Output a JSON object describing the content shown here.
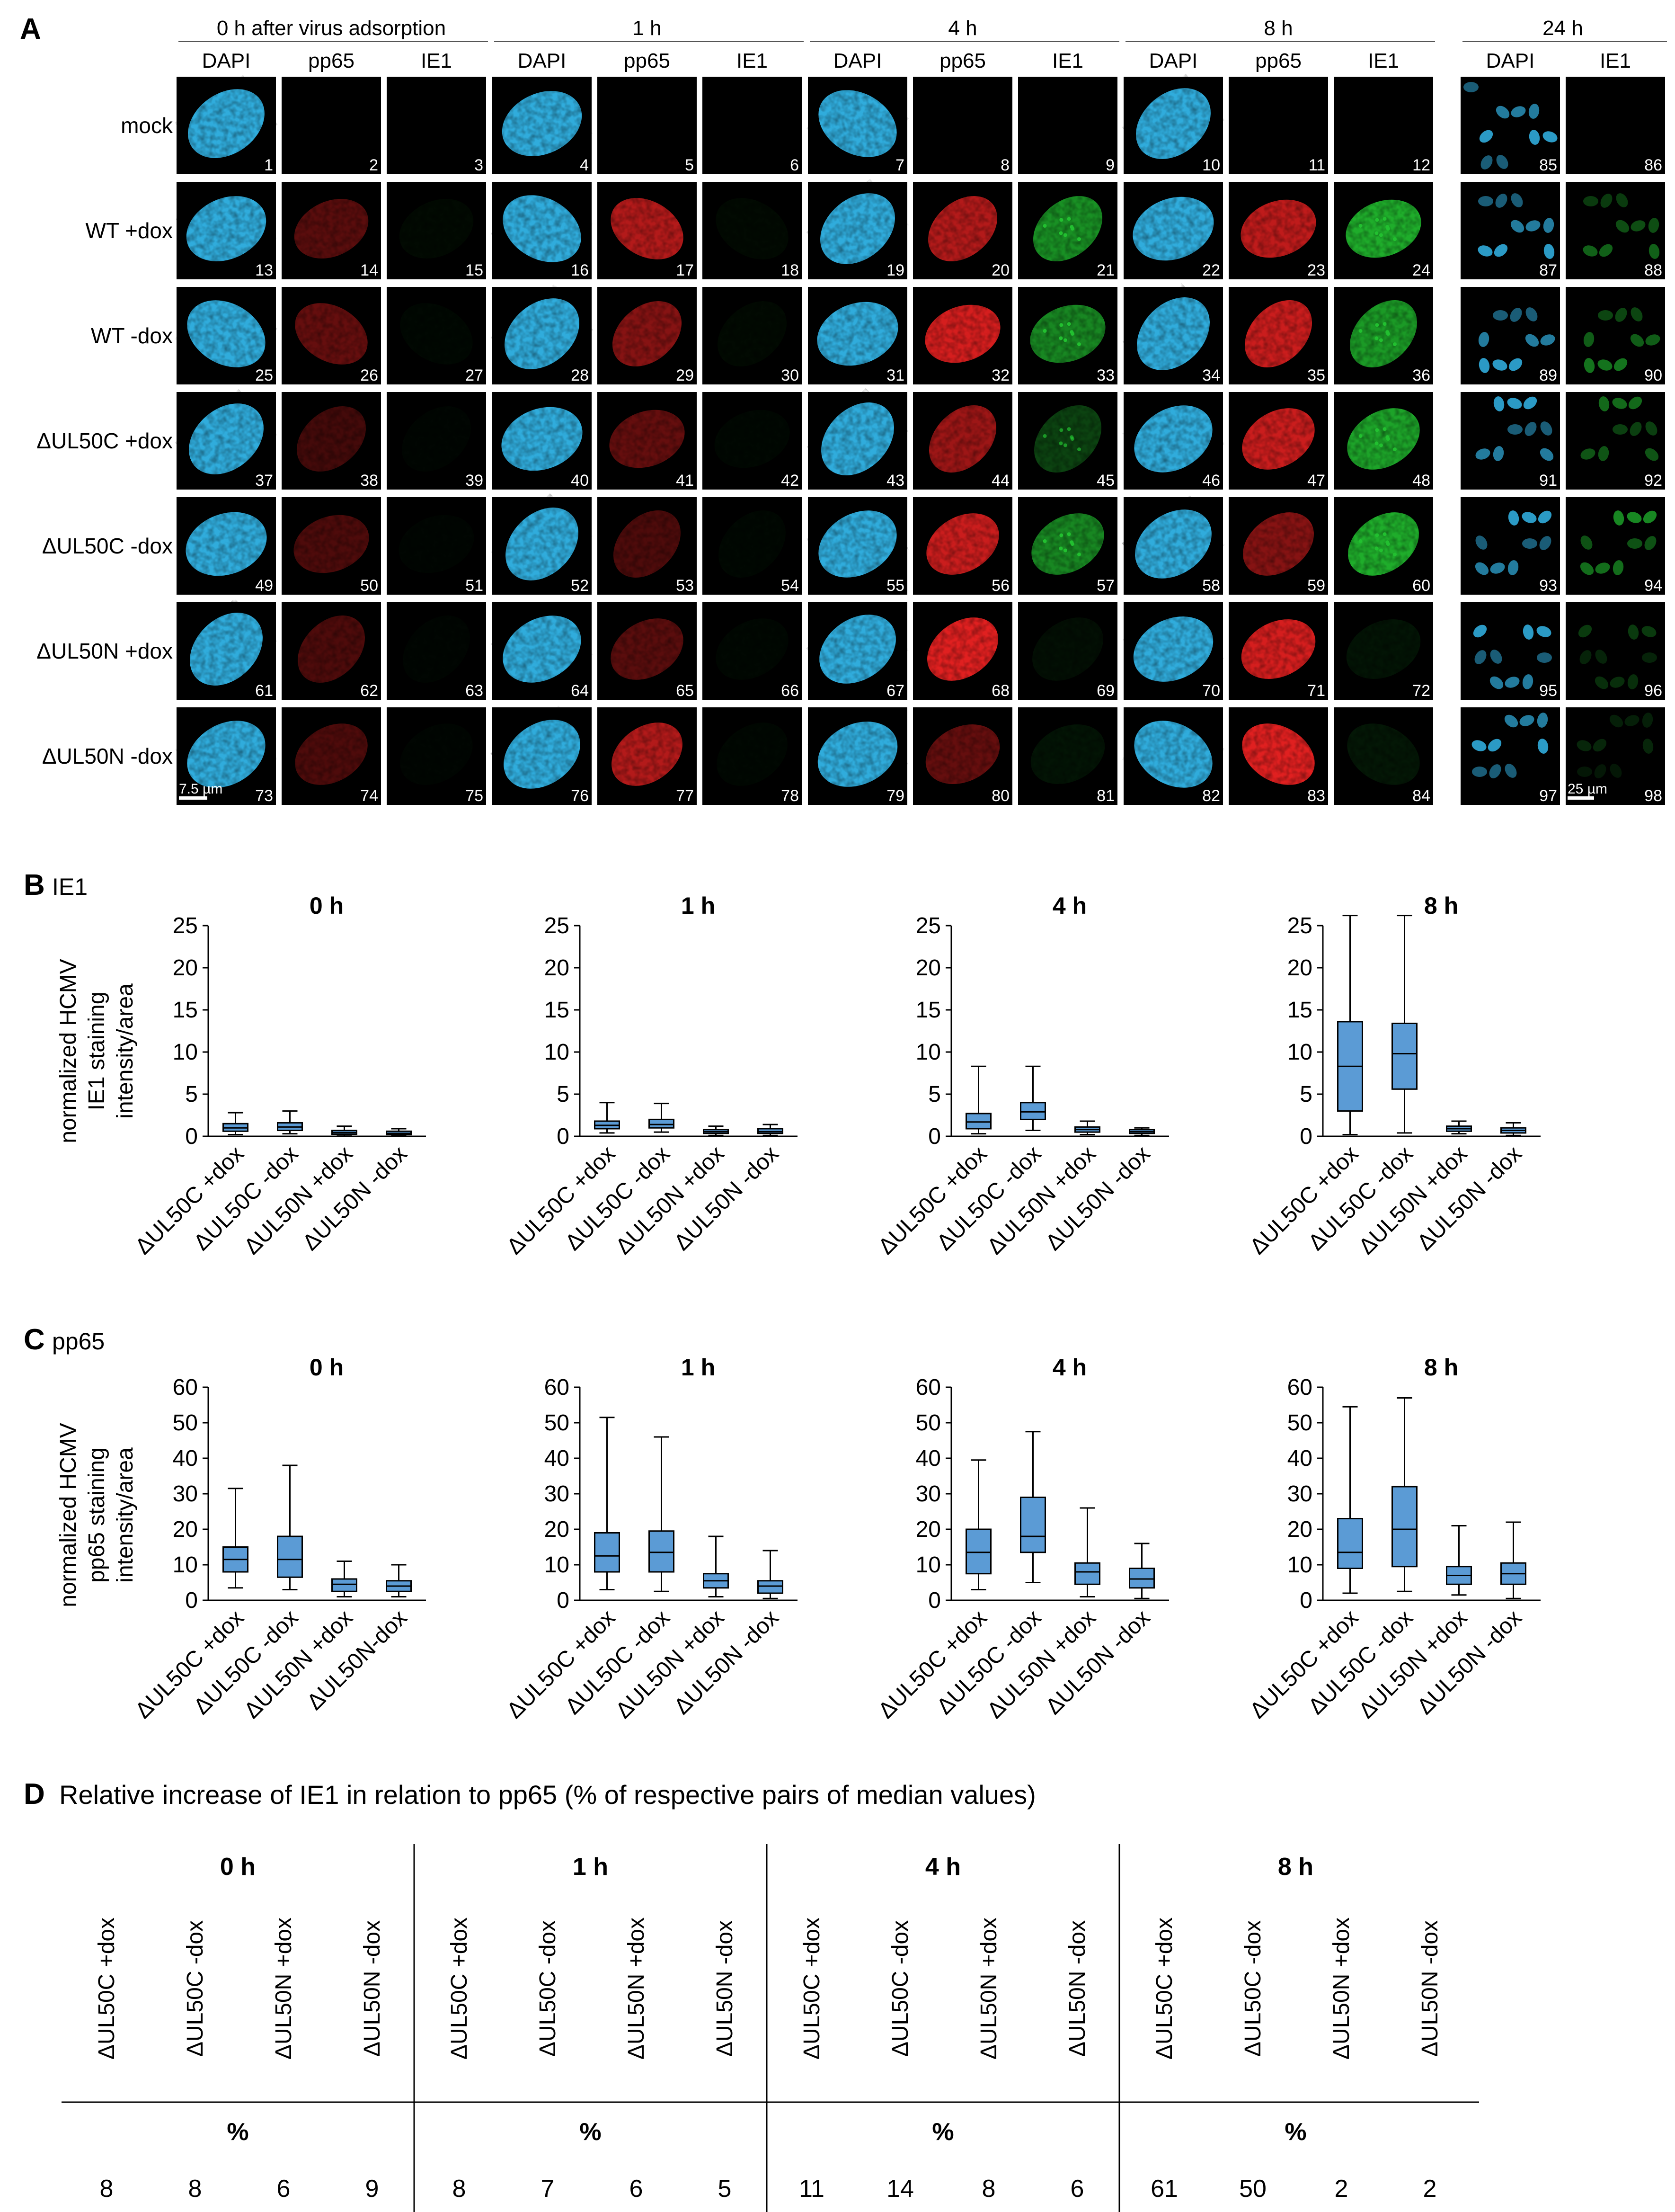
{
  "panel_a": {
    "letter": "A",
    "time_headers": [
      "0 h after virus adsorption",
      "1 h",
      "4 h",
      "8 h",
      "24 h"
    ],
    "stain_headers": [
      "DAPI",
      "pp65",
      "IE1"
    ],
    "rows": [
      "mock",
      "WT +dox",
      "WT -dox",
      "ΔUL50C +dox",
      "ΔUL50C -dox",
      "ΔUL50N +dox",
      "ΔUL50N -dox"
    ],
    "scale_bar_small": "7.5 µm",
    "scale_bar_large": "25 µm",
    "colors": {
      "dapi": "#33b5e8",
      "pp65": "#e02020",
      "ie1": "#22c030",
      "background": "#000000"
    },
    "intensity": {
      "pp65": [
        [
          0,
          0,
          0,
          0
        ],
        [
          0.4,
          0.8,
          0.8,
          0.85
        ],
        [
          0.45,
          0.6,
          0.95,
          0.9
        ],
        [
          0.3,
          0.45,
          0.7,
          0.9
        ],
        [
          0.35,
          0.35,
          0.9,
          0.6
        ],
        [
          0.35,
          0.4,
          1.0,
          0.95
        ],
        [
          0.35,
          0.8,
          0.45,
          1.0
        ]
      ],
      "ie1": [
        [
          0,
          0,
          0,
          0,
          0
        ],
        [
          0.05,
          0.05,
          0.75,
          0.9,
          0.5
        ],
        [
          0.04,
          0.05,
          0.7,
          0.8,
          0.6
        ],
        [
          0.03,
          0.04,
          0.35,
          0.85,
          0.55
        ],
        [
          0.03,
          0.04,
          0.7,
          0.9,
          0.7
        ],
        [
          0.03,
          0.04,
          0.08,
          0.1,
          0.3
        ],
        [
          0.03,
          0.04,
          0.1,
          0.12,
          0.2
        ]
      ]
    }
  },
  "panel_b": {
    "letter": "B",
    "title": "IE1",
    "ylabel": [
      "normalized HCMV",
      "IE1 staining",
      "intensity/area"
    ]
  },
  "panel_c": {
    "letter": "C",
    "title": "pp65",
    "ylabel": [
      "normalized HCMV",
      "pp65 staining",
      "intensity/area"
    ]
  },
  "chart_data": [
    {
      "type": "box",
      "panel": "B",
      "title": "0 h",
      "ylim": [
        0,
        25
      ],
      "yticks": [
        0,
        5,
        10,
        15,
        20,
        25
      ],
      "categories": [
        "ΔUL50C +dox",
        "ΔUL50C -dox",
        "ΔUL50N +dox",
        "ΔUL50N -dox"
      ],
      "boxes": [
        {
          "min": 0.2,
          "q1": 0.6,
          "median": 1.0,
          "q3": 1.5,
          "max": 2.8
        },
        {
          "min": 0.3,
          "q1": 0.7,
          "median": 1.1,
          "q3": 1.6,
          "max": 3.0
        },
        {
          "min": 0.05,
          "q1": 0.25,
          "median": 0.45,
          "q3": 0.7,
          "max": 1.2
        },
        {
          "min": 0.05,
          "q1": 0.2,
          "median": 0.35,
          "q3": 0.6,
          "max": 0.9
        }
      ]
    },
    {
      "type": "box",
      "panel": "B",
      "title": "1 h",
      "ylim": [
        0,
        25
      ],
      "yticks": [
        0,
        5,
        10,
        15,
        20,
        25
      ],
      "categories": [
        "ΔUL50C +dox",
        "ΔUL50C -dox",
        "ΔUL50N +dox",
        "ΔUL50N -dox"
      ],
      "boxes": [
        {
          "min": 0.4,
          "q1": 0.9,
          "median": 1.3,
          "q3": 1.8,
          "max": 4.0
        },
        {
          "min": 0.5,
          "q1": 1.0,
          "median": 1.4,
          "q3": 2.0,
          "max": 3.9
        },
        {
          "min": 0.1,
          "q1": 0.35,
          "median": 0.55,
          "q3": 0.8,
          "max": 1.2
        },
        {
          "min": 0.1,
          "q1": 0.35,
          "median": 0.55,
          "q3": 0.9,
          "max": 1.4
        }
      ]
    },
    {
      "type": "box",
      "panel": "B",
      "title": "4 h",
      "ylim": [
        0,
        25
      ],
      "yticks": [
        0,
        5,
        10,
        15,
        20,
        25
      ],
      "categories": [
        "ΔUL50C +dox",
        "ΔUL50C -dox",
        "ΔUL50N +dox",
        "ΔUL50N -dox"
      ],
      "boxes": [
        {
          "min": 0.3,
          "q1": 0.9,
          "median": 1.7,
          "q3": 2.7,
          "max": 8.3
        },
        {
          "min": 0.7,
          "q1": 2.0,
          "median": 2.9,
          "q3": 4.0,
          "max": 8.3
        },
        {
          "min": 0.2,
          "q1": 0.5,
          "median": 0.8,
          "q3": 1.1,
          "max": 1.8
        },
        {
          "min": 0.1,
          "q1": 0.35,
          "median": 0.55,
          "q3": 0.8,
          "max": 1.0
        }
      ]
    },
    {
      "type": "box",
      "panel": "B",
      "title": "8 h",
      "ylim": [
        0,
        25
      ],
      "yticks": [
        0,
        5,
        10,
        15,
        20,
        25
      ],
      "categories": [
        "ΔUL50C +dox",
        "ΔUL50C -dox",
        "ΔUL50N +dox",
        "ΔUL50N -dox"
      ],
      "boxes": [
        {
          "min": 0.2,
          "q1": 3.0,
          "median": 8.3,
          "q3": 13.6,
          "max": 26.2
        },
        {
          "min": 0.4,
          "q1": 5.6,
          "median": 9.8,
          "q3": 13.4,
          "max": 26.2
        },
        {
          "min": 0.3,
          "q1": 0.6,
          "median": 0.9,
          "q3": 1.2,
          "max": 1.8
        },
        {
          "min": 0.1,
          "q1": 0.4,
          "median": 0.7,
          "q3": 1.0,
          "max": 1.6
        }
      ]
    },
    {
      "type": "box",
      "panel": "C",
      "title": "0 h",
      "ylim": [
        0,
        60
      ],
      "yticks": [
        0,
        10,
        20,
        30,
        40,
        50,
        60
      ],
      "categories": [
        "ΔUL50C +dox",
        "ΔUL50C -dox",
        "ΔUL50N +dox",
        "ΔUL50N-dox"
      ],
      "boxes": [
        {
          "min": 3.5,
          "q1": 8.0,
          "median": 11.5,
          "q3": 15.0,
          "max": 31.5
        },
        {
          "min": 3.0,
          "q1": 6.5,
          "median": 11.5,
          "q3": 18.0,
          "max": 38.0
        },
        {
          "min": 1.0,
          "q1": 2.5,
          "median": 4.5,
          "q3": 6.0,
          "max": 11.0
        },
        {
          "min": 1.0,
          "q1": 2.5,
          "median": 4.0,
          "q3": 5.5,
          "max": 10.0
        }
      ]
    },
    {
      "type": "box",
      "panel": "C",
      "title": "1 h",
      "ylim": [
        0,
        60
      ],
      "yticks": [
        0,
        10,
        20,
        30,
        40,
        50,
        60
      ],
      "categories": [
        "ΔUL50C +dox",
        "ΔUL50C -dox",
        "ΔUL50N +dox",
        "ΔUL50N -dox"
      ],
      "boxes": [
        {
          "min": 3.0,
          "q1": 8.0,
          "median": 12.5,
          "q3": 19.0,
          "max": 51.5
        },
        {
          "min": 2.5,
          "q1": 8.0,
          "median": 13.5,
          "q3": 19.5,
          "max": 46.0
        },
        {
          "min": 1.0,
          "q1": 3.5,
          "median": 5.5,
          "q3": 7.5,
          "max": 18.0
        },
        {
          "min": 0.5,
          "q1": 2.0,
          "median": 4.0,
          "q3": 5.5,
          "max": 14.0
        }
      ]
    },
    {
      "type": "box",
      "panel": "C",
      "title": "4 h",
      "ylim": [
        0,
        60
      ],
      "yticks": [
        0,
        10,
        20,
        30,
        40,
        50,
        60
      ],
      "categories": [
        "ΔUL50C +dox",
        "ΔUL50C -dox",
        "ΔUL50N +dox",
        "ΔUL50N -dox"
      ],
      "boxes": [
        {
          "min": 3.0,
          "q1": 7.5,
          "median": 13.5,
          "q3": 20.0,
          "max": 39.5
        },
        {
          "min": 5.0,
          "q1": 13.5,
          "median": 18.0,
          "q3": 29.0,
          "max": 47.5
        },
        {
          "min": 1.0,
          "q1": 4.5,
          "median": 8.0,
          "q3": 10.5,
          "max": 26.0
        },
        {
          "min": 0.5,
          "q1": 3.5,
          "median": 6.0,
          "q3": 9.0,
          "max": 16.0
        }
      ]
    },
    {
      "type": "box",
      "panel": "C",
      "title": "8 h",
      "ylim": [
        0,
        60
      ],
      "yticks": [
        0,
        10,
        20,
        30,
        40,
        50,
        60
      ],
      "categories": [
        "ΔUL50C +dox",
        "ΔUL50C -dox",
        "ΔUL50N +dox",
        "ΔUL50N -dox"
      ],
      "boxes": [
        {
          "min": 2.0,
          "q1": 9.0,
          "median": 13.5,
          "q3": 23.0,
          "max": 54.5
        },
        {
          "min": 2.5,
          "q1": 9.5,
          "median": 20.0,
          "q3": 32.0,
          "max": 57.0
        },
        {
          "min": 1.5,
          "q1": 4.5,
          "median": 7.0,
          "q3": 9.5,
          "max": 21.0
        },
        {
          "min": 0.5,
          "q1": 4.5,
          "median": 7.5,
          "q3": 10.5,
          "max": 22.0
        }
      ]
    },
    {
      "type": "table",
      "panel": "D",
      "title": "Relative increase of IE1 in relation to pp65 (% of respective pairs of median values)",
      "groups": [
        "0 h",
        "1 h",
        "4 h",
        "8 h"
      ],
      "columns": [
        "ΔUL50C +dox",
        "ΔUL50C -dox",
        "ΔUL50N +dox",
        "ΔUL50N -dox"
      ],
      "unit": "%",
      "values": [
        [
          8,
          8,
          6,
          9
        ],
        [
          8,
          7,
          6,
          5
        ],
        [
          11,
          14,
          8,
          6
        ],
        [
          61,
          50,
          2,
          2
        ]
      ]
    }
  ],
  "panel_d": {
    "letter": "D"
  }
}
